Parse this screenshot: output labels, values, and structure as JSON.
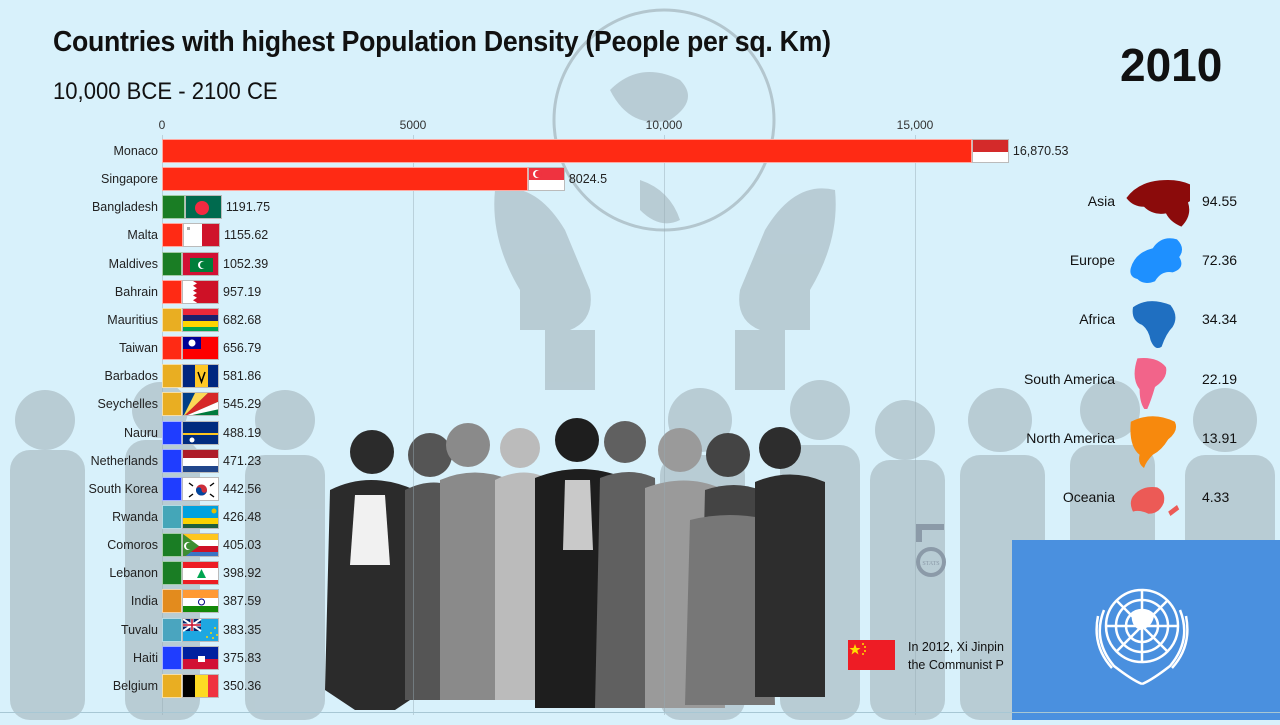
{
  "header": {
    "title": "Countries with highest Population Density (People per sq. Km)",
    "subtitle": "10,000 BCE - 2100 CE",
    "year": "2010"
  },
  "axis": {
    "ticks": [
      {
        "label": "0",
        "value": 0
      },
      {
        "label": "5000",
        "value": 5000
      },
      {
        "label": "10,000",
        "value": 10000
      },
      {
        "label": "15,000",
        "value": 15000
      }
    ]
  },
  "chart_data": {
    "type": "bar",
    "orientation": "horizontal",
    "title": "Countries with highest Population Density (People per sq. Km)",
    "subtitle": "10,000 BCE - 2100 CE",
    "period_label": "2010",
    "xlabel": "",
    "ylabel": "",
    "xlim": [
      0,
      17500
    ],
    "grid": true,
    "categories": [
      "Monaco",
      "Singapore",
      "Bangladesh",
      "Malta",
      "Maldives",
      "Bahrain",
      "Mauritius",
      "Taiwan",
      "Barbados",
      "Seychelles",
      "Nauru",
      "Netherlands",
      "South Korea",
      "Rwanda",
      "Comoros",
      "Lebanon",
      "India",
      "Tuvalu",
      "Haiti",
      "Belgium"
    ],
    "values": [
      16870.53,
      8024.5,
      1191.75,
      1155.62,
      1052.39,
      957.19,
      682.68,
      656.79,
      581.86,
      545.29,
      488.19,
      471.23,
      442.56,
      426.48,
      405.03,
      398.92,
      387.59,
      383.35,
      375.83,
      350.36
    ],
    "value_labels": [
      "16,870.53",
      "8024.5",
      "1191.75",
      "1155.62",
      "1052.39",
      "957.19",
      "682.68",
      "656.79",
      "581.86",
      "545.29",
      "488.19",
      "471.23",
      "442.56",
      "426.48",
      "405.03",
      "398.92",
      "387.59",
      "383.35",
      "375.83",
      "350.36"
    ],
    "bar_colors": [
      "#ff2a14",
      "#ff2a14",
      "#1a7d24",
      "#ff2a14",
      "#1a7d24",
      "#ff2a14",
      "#e9ae22",
      "#ff2a14",
      "#e9ae22",
      "#e9ae22",
      "#1f3dff",
      "#1f3dff",
      "#1f3dff",
      "#44a6b8",
      "#1a7d24",
      "#1a7d24",
      "#e38b1d",
      "#4aa5bf",
      "#1f3dff",
      "#e9ae22"
    ],
    "continent_legend": {
      "categories": [
        "Asia",
        "Europe",
        "Africa",
        "South America",
        "North America",
        "Oceania"
      ],
      "values": [
        94.55,
        72.36,
        34.34,
        22.19,
        13.91,
        4.33
      ],
      "colors": [
        "#8b0b0b",
        "#1e90ff",
        "#1f6fc1",
        "#f2648a",
        "#f7890d",
        "#ec5a56"
      ]
    },
    "annotations": [
      "In 2012, Xi Jinpin... the Communist P..."
    ]
  },
  "countries": [
    {
      "name": "Monaco",
      "value": "16,870.53",
      "num": 16870.53,
      "color": "#ff2a14",
      "flag": "monaco"
    },
    {
      "name": "Singapore",
      "value": "8024.5",
      "num": 8024.5,
      "color": "#ff2a14",
      "flag": "singapore"
    },
    {
      "name": "Bangladesh",
      "value": "1191.75",
      "num": 1191.75,
      "color": "#1a7d24",
      "flag": "bangladesh"
    },
    {
      "name": "Malta",
      "value": "1155.62",
      "num": 1155.62,
      "color": "#ff2a14",
      "flag": "malta"
    },
    {
      "name": "Maldives",
      "value": "1052.39",
      "num": 1052.39,
      "color": "#1a7d24",
      "flag": "maldives"
    },
    {
      "name": "Bahrain",
      "value": "957.19",
      "num": 957.19,
      "color": "#ff2a14",
      "flag": "bahrain"
    },
    {
      "name": "Mauritius",
      "value": "682.68",
      "num": 682.68,
      "color": "#e9ae22",
      "flag": "mauritius"
    },
    {
      "name": "Taiwan",
      "value": "656.79",
      "num": 656.79,
      "color": "#ff2a14",
      "flag": "taiwan"
    },
    {
      "name": "Barbados",
      "value": "581.86",
      "num": 581.86,
      "color": "#e9ae22",
      "flag": "barbados"
    },
    {
      "name": "Seychelles",
      "value": "545.29",
      "num": 545.29,
      "color": "#e9ae22",
      "flag": "seychelles"
    },
    {
      "name": "Nauru",
      "value": "488.19",
      "num": 488.19,
      "color": "#1f3dff",
      "flag": "nauru"
    },
    {
      "name": "Netherlands",
      "value": "471.23",
      "num": 471.23,
      "color": "#1f3dff",
      "flag": "netherlands"
    },
    {
      "name": "South Korea",
      "value": "442.56",
      "num": 442.56,
      "color": "#1f3dff",
      "flag": "south-korea"
    },
    {
      "name": "Rwanda",
      "value": "426.48",
      "num": 426.48,
      "color": "#44a6b8",
      "flag": "rwanda"
    },
    {
      "name": "Comoros",
      "value": "405.03",
      "num": 405.03,
      "color": "#1a7d24",
      "flag": "comoros"
    },
    {
      "name": "Lebanon",
      "value": "398.92",
      "num": 398.92,
      "color": "#1a7d24",
      "flag": "lebanon"
    },
    {
      "name": "India",
      "value": "387.59",
      "num": 387.59,
      "color": "#e38b1d",
      "flag": "india"
    },
    {
      "name": "Tuvalu",
      "value": "383.35",
      "num": 383.35,
      "color": "#4aa5bf",
      "flag": "tuvalu"
    },
    {
      "name": "Haiti",
      "value": "375.83",
      "num": 375.83,
      "color": "#1f3dff",
      "flag": "haiti"
    },
    {
      "name": "Belgium",
      "value": "350.36",
      "num": 350.36,
      "color": "#e9ae22",
      "flag": "belgium"
    }
  ],
  "continents": [
    {
      "name": "Asia",
      "value": "94.55",
      "color": "#8b0b0b"
    },
    {
      "name": "Europe",
      "value": "72.36",
      "color": "#1e90ff"
    },
    {
      "name": "Africa",
      "value": "34.34",
      "color": "#1f6fc1"
    },
    {
      "name": "South America",
      "value": "22.19",
      "color": "#f2648a"
    },
    {
      "name": "North America",
      "value": "13.91",
      "color": "#f7890d"
    },
    {
      "name": "Oceania",
      "value": "4.33",
      "color": "#ec5a56"
    }
  ],
  "annotation": {
    "line1": "In 2012, Xi Jinpin",
    "line2": "the Communist P",
    "flag": "china"
  },
  "overlays": {
    "logo_text": "STATS",
    "un_flag_color": "#4a90df"
  }
}
